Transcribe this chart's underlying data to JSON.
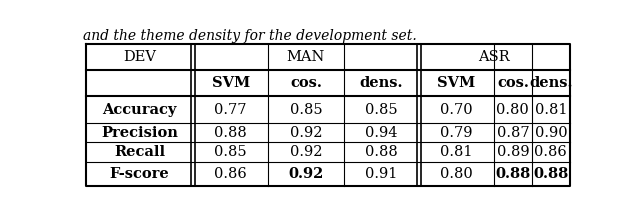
{
  "caption": "and the theme density for the development set.",
  "header_row1_labels": [
    "DEV",
    "MAN",
    "ASR"
  ],
  "header_row2_labels": [
    "SVM",
    "cos.",
    "dens.",
    "SVM",
    "cos.",
    "dens."
  ],
  "rows": [
    [
      "Accuracy",
      "0.77",
      "0.85",
      "0.85",
      "0.70",
      "0.80",
      "0.81"
    ],
    [
      "Precision",
      "0.88",
      "0.92",
      "0.94",
      "0.79",
      "0.87",
      "0.90"
    ],
    [
      "Recall",
      "0.85",
      "0.92",
      "0.88",
      "0.81",
      "0.89",
      "0.86"
    ],
    [
      "F-score",
      "0.86",
      "0.92",
      "0.91",
      "0.80",
      "0.88",
      "0.88"
    ]
  ],
  "row_bold_col0": [
    true,
    true,
    true,
    true
  ],
  "fscore_bold_cols": [
    2,
    5,
    6
  ],
  "background_color": "#ffffff",
  "line_color": "#000000",
  "font_size": 10.5
}
